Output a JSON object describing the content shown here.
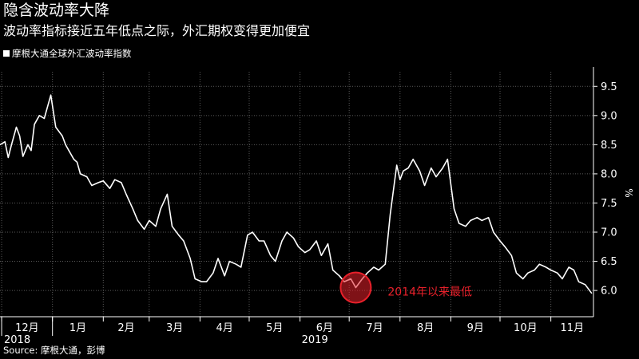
{
  "header": {
    "title": "隐含波动率大降",
    "subtitle": "波动率指标接近五年低点之际，外汇期权变得更加便宜"
  },
  "footer": {
    "source": "Source: 摩根大通，彭博"
  },
  "colors": {
    "background": "#000000",
    "line": "#ffffff",
    "grid": "#5a5a5a",
    "annotation": "#e8202a"
  },
  "chart_data": {
    "type": "line",
    "series": [
      {
        "name": "摩根大通全球外汇波动率指数",
        "x": [
          "2018-11-30",
          "2018-12-03",
          "2018-12-05",
          "2018-12-07",
          "2018-12-10",
          "2018-12-12",
          "2018-12-14",
          "2018-12-17",
          "2018-12-19",
          "2018-12-21",
          "2018-12-24",
          "2018-12-27",
          "2018-12-31",
          "2019-01-03",
          "2019-01-07",
          "2019-01-09",
          "2019-01-11",
          "2019-01-14",
          "2019-01-16",
          "2019-01-18",
          "2019-01-22",
          "2019-01-25",
          "2019-01-29",
          "2019-02-01",
          "2019-02-05",
          "2019-02-08",
          "2019-02-12",
          "2019-02-15",
          "2019-02-19",
          "2019-02-22",
          "2019-02-26",
          "2019-03-01",
          "2019-03-05",
          "2019-03-08",
          "2019-03-12",
          "2019-03-15",
          "2019-03-19",
          "2019-03-22",
          "2019-03-26",
          "2019-03-29",
          "2019-04-02",
          "2019-04-05",
          "2019-04-09",
          "2019-04-12",
          "2019-04-16",
          "2019-04-19",
          "2019-04-23",
          "2019-04-26",
          "2019-04-30",
          "2019-05-03",
          "2019-05-07",
          "2019-05-10",
          "2019-05-14",
          "2019-05-17",
          "2019-05-21",
          "2019-05-24",
          "2019-05-28",
          "2019-05-31",
          "2019-06-04",
          "2019-06-07",
          "2019-06-11",
          "2019-06-14",
          "2019-06-18",
          "2019-06-21",
          "2019-06-25",
          "2019-06-28",
          "2019-07-02",
          "2019-07-05",
          "2019-07-09",
          "2019-07-12",
          "2019-07-16",
          "2019-07-19",
          "2019-07-23",
          "2019-07-26",
          "2019-07-30",
          "2019-08-01",
          "2019-08-03",
          "2019-08-06",
          "2019-08-09",
          "2019-08-13",
          "2019-08-16",
          "2019-08-20",
          "2019-08-23",
          "2019-08-27",
          "2019-08-30",
          "2019-09-03",
          "2019-09-06",
          "2019-09-10",
          "2019-09-13",
          "2019-09-17",
          "2019-09-20",
          "2019-09-24",
          "2019-09-27",
          "2019-10-01",
          "2019-10-04",
          "2019-10-08",
          "2019-10-11",
          "2019-10-15",
          "2019-10-18",
          "2019-10-22",
          "2019-10-25",
          "2019-10-29",
          "2019-11-01",
          "2019-11-05",
          "2019-11-08",
          "2019-11-12",
          "2019-11-15",
          "2019-11-18",
          "2019-11-22",
          "2019-11-26"
        ],
        "y": [
          8.5,
          8.55,
          8.28,
          8.5,
          8.8,
          8.65,
          8.3,
          8.5,
          8.4,
          8.85,
          9.0,
          8.95,
          9.35,
          8.8,
          8.65,
          8.5,
          8.4,
          8.25,
          8.2,
          8.0,
          7.95,
          7.8,
          7.85,
          7.88,
          7.75,
          7.9,
          7.85,
          7.65,
          7.4,
          7.2,
          7.05,
          7.2,
          7.1,
          7.4,
          7.65,
          7.1,
          6.95,
          6.85,
          6.55,
          6.2,
          6.15,
          6.15,
          6.3,
          6.55,
          6.25,
          6.5,
          6.45,
          6.4,
          6.95,
          7.0,
          6.85,
          6.85,
          6.6,
          6.5,
          6.85,
          7.0,
          6.9,
          6.75,
          6.65,
          6.7,
          6.85,
          6.6,
          6.8,
          6.35,
          6.25,
          6.15,
          6.2,
          6.05,
          6.2,
          6.3,
          6.4,
          6.35,
          6.45,
          7.3,
          8.15,
          7.9,
          8.05,
          8.1,
          8.25,
          8.05,
          7.8,
          8.1,
          7.95,
          8.1,
          8.25,
          7.4,
          7.15,
          7.1,
          7.2,
          7.25,
          7.2,
          7.25,
          7.0,
          6.85,
          6.75,
          6.6,
          6.3,
          6.2,
          6.3,
          6.35,
          6.45,
          6.4,
          6.35,
          6.3,
          6.2,
          6.4,
          6.35,
          6.15,
          6.1,
          5.95
        ]
      }
    ],
    "y_axis": {
      "ticks": [
        "9.5",
        "9.0",
        "8.5",
        "8.0",
        "7.5",
        "7.0",
        "6.5",
        "6.0"
      ],
      "ylim": [
        5.55,
        9.75
      ],
      "position": "right",
      "unit_label": "%"
    },
    "x_axis": {
      "months": [
        {
          "label": "12月",
          "date": "2018-12-01"
        },
        {
          "label": "1月",
          "date": "2019-01-01"
        },
        {
          "label": "2月",
          "date": "2019-02-01"
        },
        {
          "label": "3月",
          "date": "2019-03-01"
        },
        {
          "label": "4月",
          "date": "2019-04-01"
        },
        {
          "label": "5月",
          "date": "2019-05-01"
        },
        {
          "label": "6月",
          "date": "2019-06-01"
        },
        {
          "label": "7月",
          "date": "2019-07-01"
        },
        {
          "label": "8月",
          "date": "2019-08-01"
        },
        {
          "label": "9月",
          "date": "2019-09-01"
        },
        {
          "label": "10月",
          "date": "2019-10-01"
        },
        {
          "label": "11月",
          "date": "2019-11-01"
        }
      ],
      "years": [
        {
          "label": "2018",
          "date": "2018-12-01"
        },
        {
          "label": "2019",
          "date": "2019-06-01"
        }
      ],
      "range": [
        "2018-11-30",
        "2019-11-27"
      ]
    },
    "grid": true,
    "annotation": {
      "text": "2014年以来最低",
      "date": "2019-07-05",
      "value": 6.05
    }
  }
}
